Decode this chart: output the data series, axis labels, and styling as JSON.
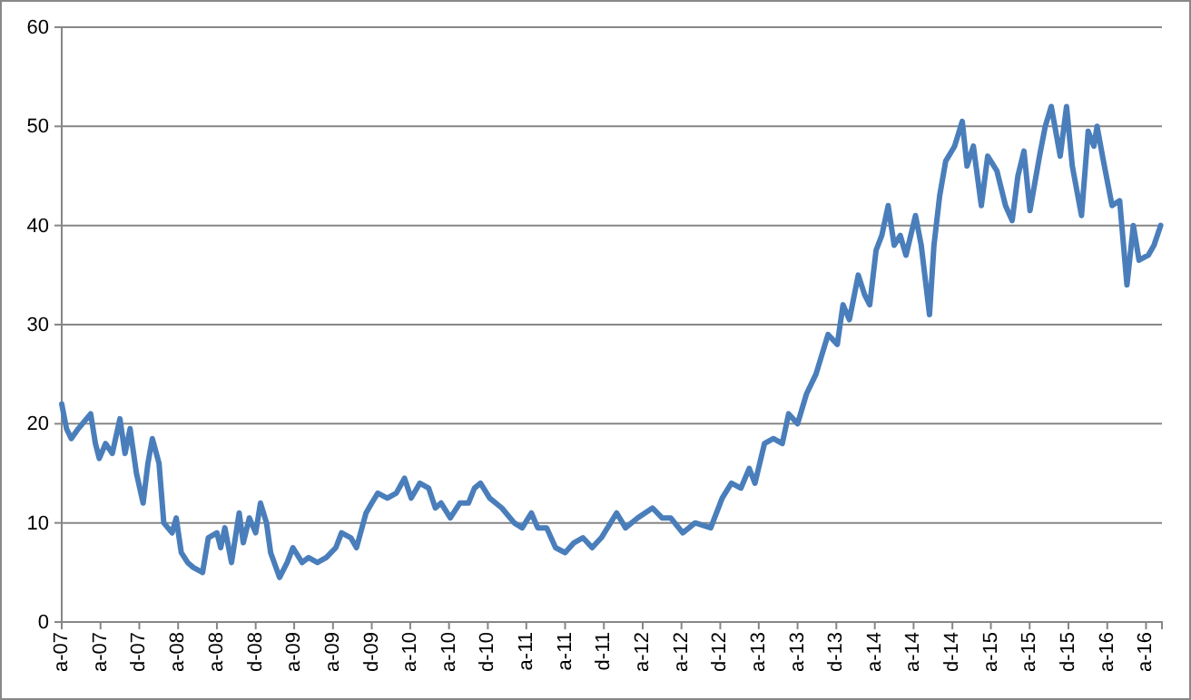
{
  "chart_data": {
    "type": "line",
    "grid": "y",
    "xlim": [
      "2007-04-01",
      "2016-09-20"
    ],
    "ylim": [
      0,
      60
    ],
    "yticks": [
      0,
      10,
      20,
      30,
      40,
      50,
      60
    ],
    "xticks": [
      {
        "value": "2007-04",
        "label": "a-07"
      },
      {
        "value": "2007-08",
        "label": "a-07"
      },
      {
        "value": "2007-12",
        "label": "d-07"
      },
      {
        "value": "2008-04",
        "label": "a-08"
      },
      {
        "value": "2008-08",
        "label": "a-08"
      },
      {
        "value": "2008-12",
        "label": "d-08"
      },
      {
        "value": "2009-04",
        "label": "a-09"
      },
      {
        "value": "2009-08",
        "label": "a-09"
      },
      {
        "value": "2009-12",
        "label": "d-09"
      },
      {
        "value": "2010-04",
        "label": "a-10"
      },
      {
        "value": "2010-08",
        "label": "a-10"
      },
      {
        "value": "2010-12",
        "label": "d-10"
      },
      {
        "value": "2011-04",
        "label": "a-11"
      },
      {
        "value": "2011-08",
        "label": "a-11"
      },
      {
        "value": "2011-12",
        "label": "d-11"
      },
      {
        "value": "2012-04",
        "label": "a-12"
      },
      {
        "value": "2012-08",
        "label": "a-12"
      },
      {
        "value": "2012-12",
        "label": "d-12"
      },
      {
        "value": "2013-04",
        "label": "a-13"
      },
      {
        "value": "2013-08",
        "label": "a-13"
      },
      {
        "value": "2013-12",
        "label": "d-13"
      },
      {
        "value": "2014-04",
        "label": "a-14"
      },
      {
        "value": "2014-08",
        "label": "a-14"
      },
      {
        "value": "2014-12",
        "label": "d-14"
      },
      {
        "value": "2015-04",
        "label": "a-15"
      },
      {
        "value": "2015-08",
        "label": "a-15"
      },
      {
        "value": "2015-12",
        "label": "d-15"
      },
      {
        "value": "2016-04",
        "label": "a-16"
      },
      {
        "value": "2016-08",
        "label": "a-16"
      }
    ],
    "x": [
      "2007-04-01",
      "2007-04-16",
      "2007-05-01",
      "2007-05-23",
      "2007-07-01",
      "2007-07-16",
      "2007-07-28",
      "2007-08-17",
      "2007-09-07",
      "2007-10-01",
      "2007-10-17",
      "2007-11-02",
      "2007-11-22",
      "2007-12-13",
      "2007-12-28",
      "2008-01-11",
      "2008-02-01",
      "2008-02-16",
      "2008-03-13",
      "2008-03-26",
      "2008-04-11",
      "2008-05-01",
      "2008-05-19",
      "2008-06-17",
      "2008-07-05",
      "2008-08-01",
      "2008-08-13",
      "2008-08-26",
      "2008-09-16",
      "2008-10-10",
      "2008-10-23",
      "2008-11-11",
      "2008-12-01",
      "2008-12-16",
      "2009-01-04",
      "2009-01-17",
      "2009-02-14",
      "2009-03-10",
      "2009-03-28",
      "2009-04-26",
      "2009-05-16",
      "2009-06-13",
      "2009-07-11",
      "2009-08-10",
      "2009-08-28",
      "2009-09-26",
      "2009-10-14",
      "2009-11-13",
      "2009-12-01",
      "2009-12-20",
      "2010-01-19",
      "2010-02-16",
      "2010-03-14",
      "2010-04-04",
      "2010-05-01",
      "2010-05-29",
      "2010-06-19",
      "2010-07-07",
      "2010-08-05",
      "2010-09-04",
      "2010-10-01",
      "2010-10-20",
      "2010-11-08",
      "2010-12-07",
      "2011-01-14",
      "2011-02-22",
      "2011-03-19",
      "2011-04-17",
      "2011-05-07",
      "2011-06-04",
      "2011-07-02",
      "2011-08-01",
      "2011-08-29",
      "2011-09-26",
      "2011-10-25",
      "2011-11-23",
      "2012-01-10",
      "2012-02-07",
      "2012-03-16",
      "2012-05-02",
      "2012-06-01",
      "2012-06-28",
      "2012-08-05",
      "2012-09-13",
      "2012-11-01",
      "2012-12-07",
      "2013-01-05",
      "2013-02-04",
      "2013-03-02",
      "2013-03-20",
      "2013-04-19",
      "2013-05-17",
      "2013-06-14",
      "2013-07-04",
      "2013-08-01",
      "2013-08-29",
      "2013-09-28",
      "2013-11-05",
      "2013-12-04",
      "2013-12-22",
      "2014-01-11",
      "2014-02-08",
      "2014-02-28",
      "2014-03-16",
      "2014-04-05",
      "2014-04-23",
      "2014-05-13",
      "2014-06-01",
      "2014-06-20",
      "2014-07-08",
      "2014-08-07",
      "2014-08-25",
      "2014-09-20",
      "2014-10-04",
      "2014-10-22",
      "2014-11-10",
      "2014-12-08",
      "2015-01-01",
      "2015-01-16",
      "2015-02-05",
      "2015-03-02",
      "2015-03-22",
      "2015-04-20",
      "2015-05-17",
      "2015-06-07",
      "2015-06-25",
      "2015-07-14",
      "2015-08-02",
      "2015-09-01",
      "2015-09-19",
      "2015-10-08",
      "2015-11-05",
      "2015-11-25",
      "2015-12-13",
      "2016-01-11",
      "2016-02-01",
      "2016-02-19",
      "2016-02-29",
      "2016-03-17",
      "2016-04-16",
      "2016-05-10",
      "2016-06-02",
      "2016-06-22",
      "2016-07-10",
      "2016-08-08",
      "2016-08-26",
      "2016-09-16"
    ],
    "series": [
      {
        "color": "#4a7ebb",
        "values": [
          22,
          19.5,
          18.5,
          19.5,
          21,
          18,
          16.5,
          18,
          17,
          20.5,
          17,
          19.5,
          15,
          12,
          16,
          18.5,
          16,
          10,
          9,
          10.5,
          7,
          6,
          5.5,
          5,
          8.5,
          9,
          7.5,
          9.5,
          6,
          11,
          8,
          10.5,
          9,
          12,
          10,
          7,
          4.5,
          6,
          7.5,
          6,
          6.5,
          6,
          6.5,
          7.5,
          9,
          8.5,
          7.5,
          11,
          12,
          13,
          12.5,
          13,
          14.5,
          12.5,
          14,
          13.5,
          11.5,
          12,
          10.5,
          12,
          12,
          13.5,
          14,
          12.5,
          11.5,
          10,
          9.5,
          11,
          9.5,
          9.5,
          7.5,
          7,
          8,
          8.5,
          7.5,
          8.5,
          11,
          9.5,
          10.5,
          11.5,
          10.5,
          10.5,
          9,
          10,
          9.5,
          12.5,
          14,
          13.5,
          15.5,
          14,
          18,
          18.5,
          18,
          21,
          20,
          23,
          25,
          29,
          28,
          32,
          30.5,
          35,
          33,
          32,
          37.5,
          39,
          42,
          38,
          39,
          37,
          41,
          38,
          31,
          38,
          43,
          46.5,
          48,
          50.5,
          46,
          48,
          42,
          47,
          45.5,
          42,
          40.5,
          45,
          47.5,
          41.5,
          47,
          50,
          52,
          47,
          52,
          46,
          41,
          49.5,
          48,
          50,
          47,
          42,
          42.5,
          34,
          40,
          36.5,
          37,
          38,
          40
        ]
      }
    ]
  }
}
